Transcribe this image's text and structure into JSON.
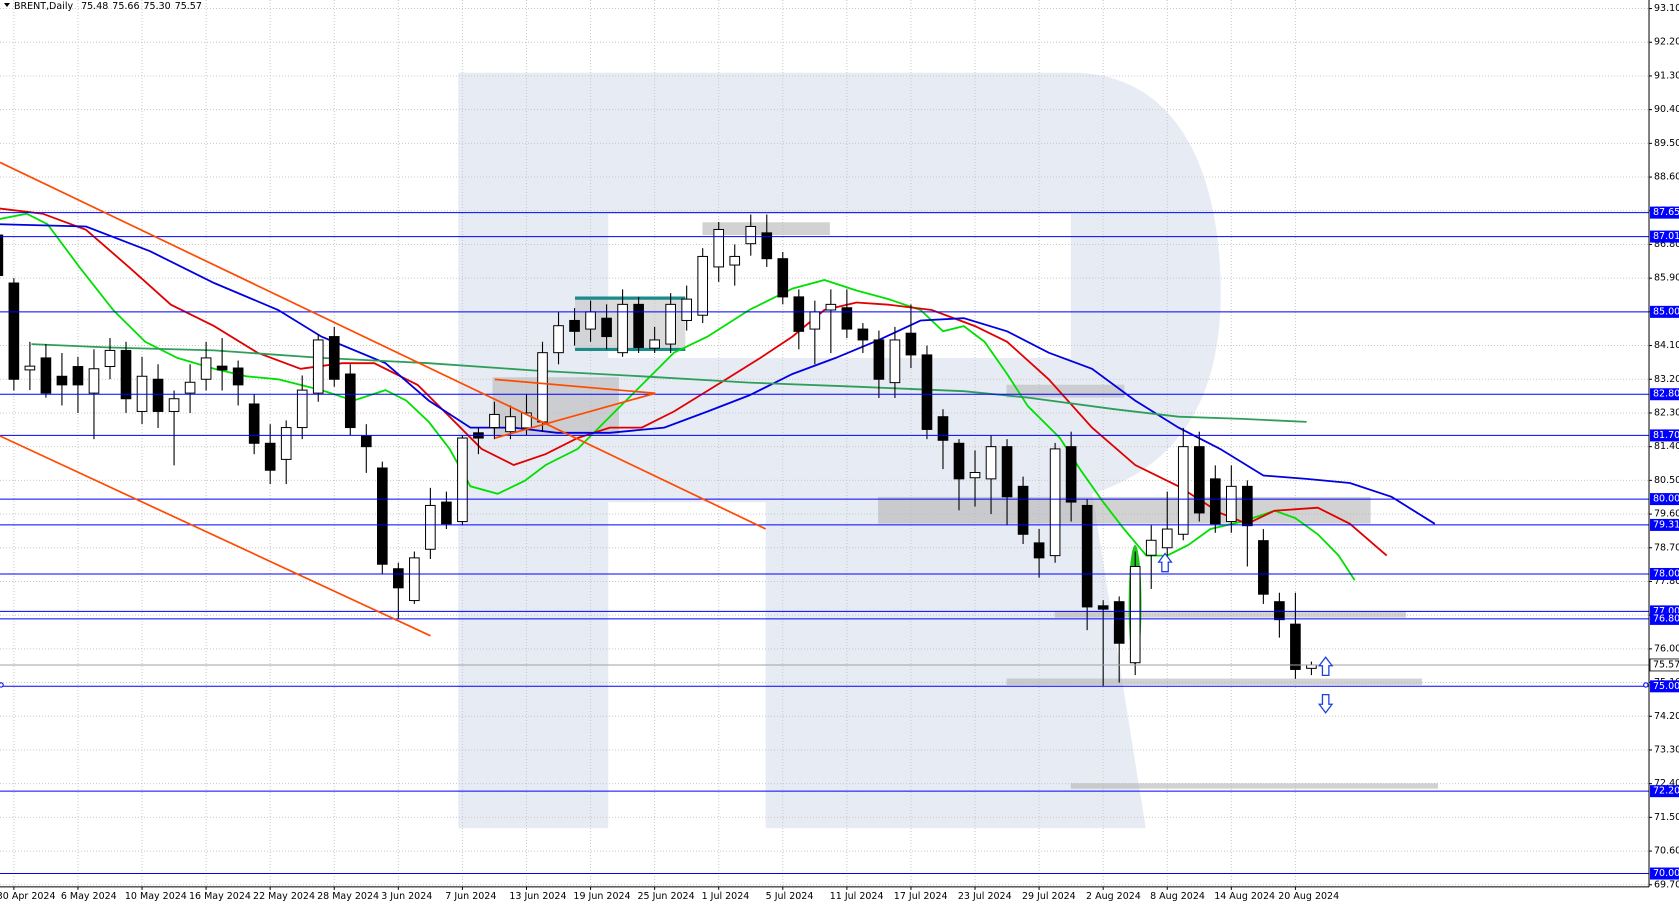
{
  "chart_data": {
    "type": "candlestick",
    "title": "BRENT,Daily",
    "ohlc_labels": [
      "75.48",
      "75.66",
      "75.30",
      "75.57"
    ],
    "categories": [
      null,
      "30 Apr 2024",
      null,
      null,
      null,
      "6 May 2024",
      null,
      null,
      null,
      "10 May 2024",
      null,
      null,
      null,
      "16 May 2024",
      null,
      null,
      null,
      "22 May 2024",
      null,
      null,
      null,
      "28 May 2024",
      null,
      null,
      null,
      "3 Jun 2024",
      null,
      null,
      null,
      "7 Jun 2024",
      null,
      null,
      null,
      "13 Jun 2024",
      null,
      null,
      null,
      "19 Jun 2024",
      null,
      null,
      null,
      "25 Jun 2024",
      null,
      null,
      null,
      "1 Jul 2024",
      null,
      null,
      null,
      "5 Jul 2024",
      null,
      null,
      null,
      "11 Jul 2024",
      null,
      null,
      null,
      "17 Jul 2024",
      null,
      null,
      null,
      "23 Jul 2024",
      null,
      null,
      null,
      "29 Jul 2024",
      null,
      null,
      null,
      "2 Aug 2024",
      null,
      null,
      null,
      "8 Aug 2024",
      null,
      null,
      null,
      "14 Aug 2024",
      null,
      null,
      null,
      "20 Aug 2024",
      null
    ],
    "open": [
      87.05,
      85.77,
      83.45,
      83.77,
      83.28,
      83.54,
      82.83,
      83.54,
      83.97,
      82.34,
      83.2,
      82.34,
      82.83,
      83.2,
      83.55,
      83.5,
      82.54,
      81.49,
      81.06,
      81.91,
      82.83,
      84.34,
      83.34,
      81.68,
      80.83,
      78.14,
      77.29,
      78.66,
      79.92,
      79.4,
      81.77,
      81.91,
      81.8,
      81.9,
      82.06,
      83.91,
      84.77,
      84.54,
      84.83,
      83.91,
      85.2,
      84.03,
      84.14,
      84.77,
      84.91,
      86.2,
      86.25,
      86.82,
      87.11,
      86.42,
      85.4,
      84.54,
      85.05,
      85.11,
      84.54,
      84.25,
      83.11,
      84.43,
      83.85,
      82.2,
      81.49,
      80.57,
      80.54,
      81.4,
      80.34,
      78.83,
      78.49,
      81.4,
      79.83,
      77.15,
      77.26,
      75.63,
      78.5,
      78.7,
      79.06,
      81.4,
      80.54,
      79.4,
      80.34,
      78.89,
      77.26,
      76.66,
      75.48
    ],
    "high": [
      87.2,
      85.9,
      84.2,
      84.14,
      83.9,
      83.8,
      84.0,
      84.3,
      84.2,
      83.8,
      83.6,
      82.9,
      83.6,
      84.2,
      84.3,
      83.7,
      82.8,
      82.0,
      82.1,
      83.3,
      84.4,
      84.6,
      83.6,
      82.0,
      81.0,
      78.3,
      78.6,
      80.3,
      80.2,
      81.7,
      81.9,
      82.6,
      82.5,
      82.8,
      84.2,
      85.0,
      85.1,
      85.3,
      85.2,
      85.6,
      85.4,
      84.6,
      85.5,
      85.7,
      86.7,
      87.4,
      86.8,
      87.6,
      87.6,
      86.6,
      85.6,
      85.3,
      85.6,
      85.6,
      84.7,
      84.5,
      84.6,
      85.2,
      84.1,
      82.4,
      81.6,
      81.3,
      81.7,
      81.6,
      80.6,
      79.2,
      81.5,
      81.8,
      80.0,
      77.3,
      77.4,
      78.6,
      79.3,
      80.2,
      81.9,
      81.8,
      80.9,
      80.9,
      80.5,
      79.2,
      77.5,
      77.5,
      75.66
    ],
    "low": [
      85.8,
      82.9,
      82.91,
      82.71,
      82.5,
      82.3,
      81.6,
      83.2,
      82.3,
      82.0,
      81.9,
      80.9,
      82.3,
      82.9,
      82.9,
      82.5,
      81.2,
      80.4,
      80.4,
      81.6,
      82.6,
      83.0,
      81.7,
      80.7,
      78.0,
      76.8,
      77.2,
      78.4,
      79.2,
      79.3,
      81.2,
      81.6,
      81.6,
      81.7,
      81.8,
      83.6,
      84.1,
      84.2,
      84.0,
      83.8,
      83.9,
      83.9,
      83.9,
      84.5,
      84.7,
      85.8,
      85.7,
      86.5,
      86.2,
      85.2,
      84.0,
      83.6,
      83.9,
      84.3,
      83.9,
      82.7,
      82.7,
      83.5,
      81.6,
      80.8,
      79.7,
      79.8,
      79.6,
      79.3,
      78.8,
      77.9,
      78.3,
      79.4,
      76.5,
      75.0,
      75.1,
      75.3,
      77.6,
      78.4,
      78.9,
      79.4,
      79.1,
      79.1,
      78.2,
      77.2,
      76.3,
      75.2,
      75.3
    ],
    "close": [
      85.97,
      83.2,
      83.55,
      82.83,
      83.05,
      83.05,
      83.48,
      83.97,
      82.68,
      83.28,
      82.34,
      82.68,
      83.12,
      83.77,
      83.45,
      83.05,
      81.49,
      80.77,
      81.91,
      82.91,
      84.25,
      83.2,
      81.91,
      81.4,
      78.26,
      77.63,
      78.43,
      79.83,
      79.34,
      81.63,
      81.63,
      82.26,
      82.2,
      82.3,
      83.91,
      84.63,
      84.48,
      85.0,
      84.34,
      85.2,
      84.05,
      84.25,
      85.2,
      85.34,
      86.48,
      87.2,
      86.48,
      87.28,
      86.42,
      85.4,
      84.48,
      85.0,
      85.2,
      84.54,
      84.25,
      83.2,
      84.25,
      83.85,
      81.86,
      81.57,
      80.54,
      80.71,
      81.4,
      80.06,
      79.06,
      78.43,
      81.34,
      79.92,
      77.12,
      77.06,
      76.15,
      78.2,
      78.9,
      79.2,
      81.4,
      79.63,
      79.34,
      80.34,
      79.29,
      77.46,
      76.78,
      75.45,
      75.57
    ],
    "up_color": "#ffffff",
    "down_color": "#000000",
    "series": [
      {
        "type": "line",
        "color": "#00e000",
        "x": [
          0.1,
          1.8,
          3.1,
          5.1,
          7.2,
          9.2,
          11.2,
          13.5,
          15.5,
          17.5,
          20.2,
          22.2,
          24.2,
          25.5,
          26.9,
          28.2,
          29.5,
          31.2,
          32.9,
          34.2,
          36.2,
          38.2,
          40.2,
          42.2,
          44.3,
          46.9,
          49.6,
          51.6,
          53.6,
          55.6,
          57.6,
          59,
          60.3,
          61.6,
          63,
          64.3,
          66.3,
          67.6,
          69,
          70.3,
          71.7,
          73,
          74.3,
          75.7,
          77.7,
          79.7,
          81,
          82.4,
          83.7,
          84.7
        ],
        "values": [
          87.48,
          87.62,
          87.34,
          86.19,
          85.05,
          84.2,
          83.77,
          83.48,
          83.28,
          83.2,
          82.91,
          82.63,
          82.91,
          82.63,
          82.06,
          81.34,
          80.34,
          80.14,
          80.49,
          80.91,
          81.34,
          82.2,
          83.05,
          83.91,
          84.34,
          85.05,
          85.62,
          85.85,
          85.57,
          85.34,
          85.05,
          84.48,
          84.62,
          84.2,
          83.34,
          82.48,
          81.63,
          80.77,
          79.92,
          79.2,
          78.49,
          78.49,
          78.77,
          79.2,
          79.4,
          79.69,
          79.49,
          79.06,
          78.49,
          77.83
        ]
      },
      {
        "type": "line",
        "color": "#e00000",
        "x": [
          0.1,
          2.8,
          5.5,
          8.2,
          10.8,
          13.5,
          16.2,
          18.9,
          21.5,
          23.5,
          26.2,
          28.2,
          30.2,
          32.2,
          34.2,
          36.2,
          38.2,
          40.2,
          42.2,
          44.9,
          47.6,
          49.6,
          51.6,
          53.6,
          55.6,
          58.3,
          61,
          63,
          65.6,
          68.3,
          71,
          73.7,
          76.3,
          78,
          79.7,
          82.4,
          84.4,
          86.7
        ],
        "values": [
          87.76,
          87.62,
          87.19,
          86.19,
          85.19,
          84.62,
          83.91,
          83.48,
          83.63,
          83.63,
          83.05,
          82.2,
          81.34,
          80.91,
          81.2,
          81.63,
          81.91,
          81.91,
          82.34,
          83.05,
          83.77,
          84.34,
          85.05,
          85.25,
          85.19,
          85.05,
          84.62,
          84.2,
          83.2,
          81.91,
          80.91,
          80.34,
          79.63,
          79.34,
          79.69,
          79.77,
          79.34,
          78.49
        ]
      },
      {
        "type": "line",
        "color": "#0000e0",
        "x": [
          0.1,
          5.5,
          9.5,
          13.5,
          17.5,
          20.2,
          24.2,
          26.9,
          29.5,
          32.2,
          34.9,
          38.2,
          41.6,
          44.3,
          46.9,
          49.6,
          52.3,
          55,
          57.6,
          60.3,
          63,
          65.6,
          68.3,
          71,
          73.7,
          76.3,
          79,
          81.7,
          84.4,
          87,
          89.7
        ],
        "values": [
          87.34,
          87.28,
          86.62,
          85.77,
          85.05,
          84.34,
          83.63,
          82.63,
          81.91,
          81.91,
          81.77,
          81.77,
          81.91,
          82.34,
          82.77,
          83.34,
          83.77,
          84.25,
          84.77,
          84.83,
          84.48,
          83.91,
          83.48,
          82.63,
          81.91,
          81.34,
          80.63,
          80.54,
          80.43,
          80.06,
          79.34
        ]
      },
      {
        "type": "line",
        "color": "#2e9e5a",
        "x": [
          2.1,
          6.8,
          13.5,
          20.2,
          26.9,
          33.6,
          40.2,
          46.9,
          53.6,
          60.3,
          64.3,
          69.7,
          73.7,
          77.7,
          81.7
        ],
        "values": [
          84.14,
          84.05,
          83.97,
          83.77,
          83.63,
          83.43,
          83.28,
          83.11,
          83.0,
          82.88,
          82.71,
          82.4,
          82.2,
          82.14,
          82.06
        ]
      }
    ],
    "levels": [
      {
        "value": 87.65,
        "label": "87.65"
      },
      {
        "value": 87.01,
        "label": "87.01"
      },
      {
        "value": 85.0,
        "label": "85.00"
      },
      {
        "value": 82.8,
        "label": "82.80"
      },
      {
        "value": 81.7,
        "label": "81.70"
      },
      {
        "value": 80.0,
        "label": "80.00"
      },
      {
        "value": 79.31,
        "label": "79.31"
      },
      {
        "value": 78.0,
        "label": "78.00"
      },
      {
        "value": 77.0,
        "label": "77.00"
      },
      {
        "value": 76.8,
        "label": "76.80"
      },
      {
        "value": 75.0,
        "label": "75.00"
      },
      {
        "value": 72.2,
        "label": "72.20"
      },
      {
        "value": 70.0,
        "label": "70.00"
      }
    ],
    "level_color": "#0000ff",
    "ylim": [
      69.7,
      93.1
    ],
    "yticks": [
      {
        "value": 93.1,
        "label": "93.10"
      },
      {
        "value": 92.2,
        "label": "92.20"
      },
      {
        "value": 91.3,
        "label": "91.30"
      },
      {
        "value": 90.4,
        "label": "90.40"
      },
      {
        "value": 89.5,
        "label": "89.50"
      },
      {
        "value": 88.6,
        "label": "88.60"
      },
      {
        "value": 87.7,
        "label": "87.70"
      },
      {
        "value": 86.8,
        "label": "86.80"
      },
      {
        "value": 85.9,
        "label": "85.90"
      },
      {
        "value": 85.0,
        "label": "85.00"
      },
      {
        "value": 84.1,
        "label": "84.10"
      },
      {
        "value": 83.2,
        "label": "83.20"
      },
      {
        "value": 82.3,
        "label": "82.30"
      },
      {
        "value": 81.4,
        "label": "81.40"
      },
      {
        "value": 80.5,
        "label": "80.50"
      },
      {
        "value": 79.6,
        "label": "79.60"
      },
      {
        "value": 78.7,
        "label": "78.70"
      },
      {
        "value": 77.8,
        "label": "77.80"
      },
      {
        "value": 76.9,
        "label": "76.90"
      },
      {
        "value": 76.0,
        "label": "76.00"
      },
      {
        "value": 75.1,
        "label": "75.10"
      },
      {
        "value": 74.2,
        "label": "74.20"
      },
      {
        "value": 73.3,
        "label": "73.30"
      },
      {
        "value": 72.4,
        "label": "72.40"
      },
      {
        "value": 71.5,
        "label": "71.50"
      },
      {
        "value": 70.6,
        "label": "70.60"
      },
      {
        "value": 69.7,
        "label": "69.70"
      }
    ],
    "grid": true
  }
}
